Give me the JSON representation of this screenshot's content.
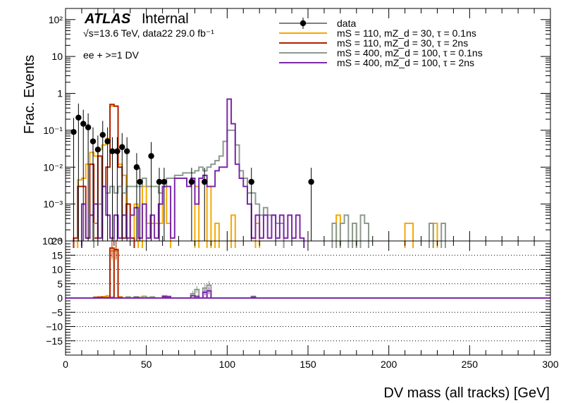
{
  "chart_data": [
    {
      "type": "line",
      "panel": "main",
      "label_atlas": "ATLAS",
      "label_status": "Internal",
      "info_line": "√s=13.6 TeV, data22 29.0 fb⁻¹",
      "selection": "ee + >=1 DV",
      "ylabel": "Frac. Events",
      "yscale": "log",
      "ylim": [
        0.0001,
        200
      ],
      "xlim": [
        0,
        300
      ],
      "y_tick_labels": [
        "10⁻⁴",
        "10⁻³",
        "10⁻²",
        "10⁻¹",
        "1",
        "10",
        "10²"
      ],
      "bin_width": 2.5,
      "legend_position": "top-right",
      "data": {
        "name": "data",
        "color": "#000000",
        "x": [
          5,
          8,
          11,
          14,
          17,
          20,
          23,
          26,
          29,
          32,
          35,
          38,
          44,
          46,
          53,
          58,
          61,
          78,
          86,
          115,
          152
        ],
        "y": [
          0.09,
          0.22,
          0.15,
          0.12,
          0.05,
          0.03,
          0.075,
          0.05,
          0.027,
          0.027,
          0.035,
          0.027,
          0.01,
          0.004,
          0.02,
          0.004,
          0.004,
          0.004,
          0.004,
          0.004,
          0.004
        ]
      },
      "series": [
        {
          "name": "mS = 110, mZ_d = 30, τ = 0.1ns",
          "color": "#f5a900",
          "points": [
            [
              7.5,
              0.0045
            ],
            [
              10,
              0.005
            ],
            [
              12.5,
              0.012
            ],
            [
              15,
              0.025
            ],
            [
              17.5,
              0.02
            ],
            [
              20,
              0.03
            ],
            [
              22.5,
              0.04
            ],
            [
              25,
              0.06
            ],
            [
              27.5,
              0.45
            ],
            [
              30,
              0.45
            ],
            [
              32.5,
              0.012
            ],
            [
              35,
              0.006
            ],
            [
              37.5,
              0.001
            ],
            [
              40,
              0.00012
            ],
            [
              42.5,
              0.001
            ],
            [
              47.5,
              0.003
            ],
            [
              50,
              0.0003
            ],
            [
              52.5,
              0.0003
            ],
            [
              55,
              0.0003
            ],
            [
              57.5,
              0.0003
            ],
            [
              60,
              0.003
            ],
            [
              62.5,
              0.0003
            ],
            [
              80,
              0.003
            ],
            [
              87.5,
              0.003
            ],
            [
              92.5,
              0.0003
            ],
            [
              102.5,
              0.0005
            ],
            [
              117.5,
              0.0003
            ],
            [
              167.5,
              0.0005
            ],
            [
              177.5,
              0.0003
            ],
            [
              210,
              0.0003
            ],
            [
              212.5,
              0.0003
            ],
            [
              227.5,
              0.0003
            ]
          ]
        },
        {
          "name": "mS = 110, mZ_d = 30, τ = 2ns",
          "color": "#b22000",
          "points": [
            [
              5,
              0.00012
            ],
            [
              7.5,
              0.003
            ],
            [
              10,
              0.003
            ],
            [
              12.5,
              0.00012
            ],
            [
              15,
              0.012
            ],
            [
              17.5,
              0.00012
            ],
            [
              20,
              0.02
            ],
            [
              22.5,
              0.003
            ],
            [
              25,
              0.01
            ],
            [
              27.5,
              0.5
            ],
            [
              30,
              0.45
            ],
            [
              32.5,
              0.01
            ],
            [
              35,
              0.00012
            ],
            [
              37.5,
              0.001
            ],
            [
              40,
              0.00012
            ]
          ]
        },
        {
          "name": "mS = 400, mZ_d = 100, τ = 0.1ns",
          "color": "#8d9a8f",
          "points": [
            [
              17.5,
              0.0003
            ],
            [
              20,
              0.001
            ],
            [
              22.5,
              0.003
            ],
            [
              25,
              0.002
            ],
            [
              27.5,
              0.003
            ],
            [
              30,
              0.002
            ],
            [
              32.5,
              0.003
            ],
            [
              35,
              0.002
            ],
            [
              37.5,
              0.003
            ],
            [
              40,
              0.003
            ],
            [
              42.5,
              0.003
            ],
            [
              45,
              0.003
            ],
            [
              47.5,
              0.005
            ],
            [
              50,
              0.003
            ],
            [
              52.5,
              0.003
            ],
            [
              55,
              0.003
            ],
            [
              57.5,
              0.002
            ],
            [
              60,
              0.003
            ],
            [
              62.5,
              0.005
            ],
            [
              65,
              0.005
            ],
            [
              67.5,
              0.006
            ],
            [
              70,
              0.006
            ],
            [
              72.5,
              0.007
            ],
            [
              75,
              0.007
            ],
            [
              77.5,
              0.007
            ],
            [
              80,
              0.008
            ],
            [
              82.5,
              0.01
            ],
            [
              85,
              0.008
            ],
            [
              87.5,
              0.01
            ],
            [
              90,
              0.012
            ],
            [
              92.5,
              0.015
            ],
            [
              95,
              0.02
            ],
            [
              97.5,
              0.05
            ],
            [
              100,
              0.1
            ],
            [
              102.5,
              0.1
            ],
            [
              105,
              0.04
            ],
            [
              107.5,
              0.008
            ],
            [
              110,
              0.005
            ],
            [
              112.5,
              0.002
            ],
            [
              115,
              0.002
            ],
            [
              117.5,
              0.001
            ],
            [
              120,
              0.0005
            ],
            [
              122.5,
              0.0008
            ],
            [
              125,
              0.0005
            ],
            [
              127.5,
              0.0005
            ],
            [
              130,
              0.0003
            ],
            [
              132.5,
              0.0003
            ],
            [
              165,
              0.0003
            ],
            [
              170,
              0.0003
            ],
            [
              172.5,
              0.0005
            ],
            [
              177.5,
              0.0003
            ],
            [
              182.5,
              0.0005
            ],
            [
              185,
              0.0003
            ],
            [
              225,
              0.0003
            ],
            [
              232.5,
              0.0003
            ]
          ]
        },
        {
          "name": "mS = 400, mZ_d = 100, τ = 2ns",
          "color": "#7a28a8",
          "points": [
            [
              10,
              0.001
            ],
            [
              12.5,
              0.00012
            ],
            [
              15,
              0.0005
            ],
            [
              17.5,
              0.001
            ],
            [
              20,
              0.00012
            ],
            [
              22.5,
              0.003
            ],
            [
              25,
              0.0005
            ],
            [
              27.5,
              0.00012
            ],
            [
              30,
              0.0005
            ],
            [
              32.5,
              0.00012
            ],
            [
              35,
              0.0005
            ],
            [
              37.5,
              0.00012
            ],
            [
              40,
              0.0005
            ],
            [
              42.5,
              0.0008
            ],
            [
              45,
              0.00012
            ],
            [
              47.5,
              0.001
            ],
            [
              50,
              0.00012
            ],
            [
              52.5,
              0.0005
            ],
            [
              55,
              0.00012
            ],
            [
              57.5,
              0.001
            ],
            [
              60,
              0.003
            ],
            [
              62.5,
              0.003
            ],
            [
              65,
              0.00012
            ],
            [
              67.5,
              0.005
            ],
            [
              70,
              0.005
            ],
            [
              72.5,
              0.005
            ],
            [
              75,
              0.003
            ],
            [
              77.5,
              0.005
            ],
            [
              80,
              0.001
            ],
            [
              82.5,
              0.005
            ],
            [
              85,
              0.006
            ],
            [
              87.5,
              0.003
            ],
            [
              90,
              0.003
            ],
            [
              92.5,
              0.008
            ],
            [
              95,
              0.01
            ],
            [
              97.5,
              0.01
            ],
            [
              100,
              0.7
            ],
            [
              102.5,
              0.15
            ],
            [
              105,
              0.012
            ],
            [
              107.5,
              0.005
            ],
            [
              110,
              0.003
            ],
            [
              112.5,
              0.001
            ],
            [
              115,
              0.00012
            ],
            [
              117.5,
              0.0005
            ],
            [
              120,
              0.00012
            ],
            [
              122.5,
              0.0005
            ],
            [
              125,
              0.00012
            ],
            [
              127.5,
              0.0005
            ],
            [
              130,
              0.00012
            ],
            [
              132.5,
              0.0005
            ],
            [
              135,
              0.00012
            ],
            [
              137.5,
              0.0005
            ],
            [
              140,
              0.00012
            ],
            [
              142.5,
              0.0005
            ],
            [
              145,
              0.00012
            ]
          ]
        }
      ]
    },
    {
      "type": "line",
      "panel": "ratio",
      "xlabel": "DV mass (all tracks) [GeV]",
      "xlim": [
        0,
        300
      ],
      "ylim": [
        -20,
        20
      ],
      "x_ticks": [
        0,
        50,
        100,
        150,
        200,
        250,
        300
      ],
      "y_ticks": [
        -15,
        -10,
        -5,
        0,
        5,
        10,
        15
      ],
      "top_tick_label": "20",
      "grid_y": true,
      "series": [
        {
          "name": "mS = 110, mZ_d = 30, τ = 0.1ns",
          "color": "#f5a900",
          "points": [
            [
              17.5,
              0.3
            ],
            [
              22.5,
              0.5
            ],
            [
              25,
              0.8
            ],
            [
              27.5,
              16.5
            ],
            [
              30,
              16.5
            ],
            [
              32.5,
              0.4
            ],
            [
              40,
              0.1
            ],
            [
              45,
              0.3
            ],
            [
              50,
              0.2
            ],
            [
              60,
              0.5
            ]
          ]
        },
        {
          "name": "mS = 110, mZ_d = 30, τ = 2ns",
          "color": "#b22000",
          "points": [
            [
              17.5,
              0.2
            ],
            [
              20,
              0.3
            ],
            [
              22.5,
              0.2
            ],
            [
              25,
              0.2
            ],
            [
              27.5,
              17.5
            ],
            [
              30,
              17
            ],
            [
              32.5,
              0.2
            ]
          ]
        },
        {
          "name": "mS = 400, mZ_d = 100, τ = 0.1ns",
          "color": "#8d9a8f",
          "points": [
            [
              37.5,
              0.4
            ],
            [
              42.5,
              0.4
            ],
            [
              47.5,
              0.6
            ],
            [
              52.5,
              0.4
            ],
            [
              60,
              0.8
            ],
            [
              62.5,
              0.6
            ],
            [
              77.5,
              1.5
            ],
            [
              80,
              3.0
            ],
            [
              85,
              3.5
            ],
            [
              87.5,
              4.5
            ],
            [
              115,
              0.6
            ]
          ]
        },
        {
          "name": "mS = 400, mZ_d = 100, τ = 2ns",
          "color": "#7a28a8",
          "points": [
            [
              27.5,
              0.2
            ],
            [
              42.5,
              0.2
            ],
            [
              60,
              0.5
            ],
            [
              62.5,
              0.4
            ],
            [
              77.5,
              0.8
            ],
            [
              80,
              0.6
            ],
            [
              85,
              2.0
            ],
            [
              87.5,
              2.5
            ],
            [
              115,
              0.3
            ]
          ]
        }
      ]
    }
  ]
}
